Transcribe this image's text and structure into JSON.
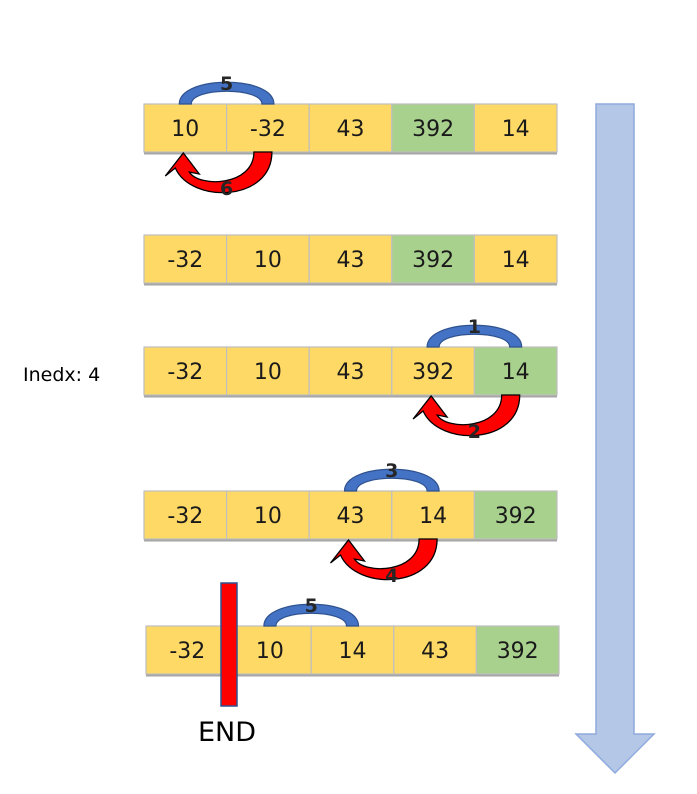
{
  "colors": {
    "cell_default": "#FFD966",
    "cell_highlight": "#A9D18E",
    "cell_border": "#BFBFBF",
    "arc_blue": "#4472C4",
    "arc_blue_edge": "#2F528F",
    "arc_red": "#FF0000",
    "timeline_arrow": "#B4C7E7",
    "timeline_arrow_edge": "#8FAADC",
    "end_marker": "#FF0000",
    "end_marker_edge": "#2F528F"
  },
  "rows": [
    {
      "values": [
        "10",
        "-32",
        "43",
        "392",
        "14"
      ],
      "highlight": [
        3
      ]
    },
    {
      "values": [
        "-32",
        "10",
        "43",
        "392",
        "14"
      ],
      "highlight": [
        3
      ]
    },
    {
      "values": [
        "-32",
        "10",
        "43",
        "392",
        "14"
      ],
      "highlight": [
        4
      ]
    },
    {
      "values": [
        "-32",
        "10",
        "43",
        "14",
        "392"
      ],
      "highlight": [
        4
      ]
    },
    {
      "values": [
        "-32",
        "10",
        "14",
        "43",
        "392"
      ],
      "highlight": [
        4
      ]
    }
  ],
  "steps": [
    {
      "label": "5",
      "kind": "compare",
      "row": 0,
      "from": 0,
      "to": 1
    },
    {
      "label": "6",
      "kind": "swap",
      "row": 0,
      "from": 1,
      "to": 0
    },
    {
      "label": "1",
      "kind": "compare",
      "row": 2,
      "from": 3,
      "to": 4
    },
    {
      "label": "2",
      "kind": "swap",
      "row": 2,
      "from": 4,
      "to": 3
    },
    {
      "label": "3",
      "kind": "compare",
      "row": 3,
      "from": 2,
      "to": 3
    },
    {
      "label": "4",
      "kind": "swap",
      "row": 3,
      "from": 3,
      "to": 2
    },
    {
      "label": "5",
      "kind": "compare",
      "row": 4,
      "from": 1,
      "to": 2
    }
  ],
  "index_label": "Inedx: 4",
  "end_label": "END"
}
